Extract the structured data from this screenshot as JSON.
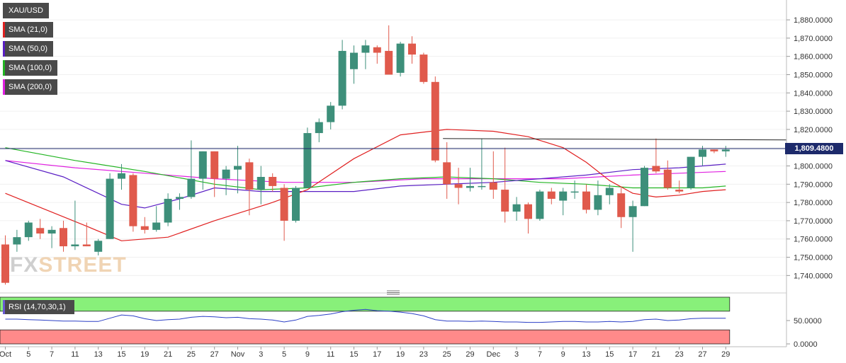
{
  "chart_data": {
    "type": "candlestick",
    "symbol": "XAU/USD",
    "last_price": "1,809.4800",
    "price_axis": {
      "ylim": [
        1732,
        1887
      ],
      "ticks": [
        "1,740.0000",
        "1,750.0000",
        "1,760.0000",
        "1,770.0000",
        "1,780.0000",
        "1,790.0000",
        "1,800.0000",
        "1,810.0000",
        "1,820.0000",
        "1,830.0000",
        "1,840.0000",
        "1,850.0000",
        "1,860.0000",
        "1,870.0000",
        "1,880.0000"
      ],
      "tick_values": [
        1740,
        1750,
        1760,
        1770,
        1780,
        1790,
        1800,
        1810,
        1820,
        1830,
        1840,
        1850,
        1860,
        1870,
        1880
      ]
    },
    "x_axis": {
      "labels": [
        "Oct",
        "5",
        "7",
        "11",
        "13",
        "15",
        "19",
        "21",
        "25",
        "27",
        "Nov",
        "3",
        "5",
        "9",
        "11",
        "15",
        "17",
        "19",
        "23",
        "25",
        "29",
        "Dec",
        "3",
        "7",
        "9",
        "13",
        "15",
        "17",
        "21",
        "23",
        "27",
        "29"
      ],
      "label_slots": [
        0,
        2,
        4,
        6,
        8,
        10,
        12,
        14,
        16,
        18,
        20,
        22,
        24,
        26,
        28,
        30,
        32,
        34,
        36,
        38,
        40,
        42,
        44,
        46,
        48,
        50,
        52,
        54,
        56,
        58,
        60,
        62
      ]
    },
    "legend": [
      {
        "label": "XAU/USD",
        "color": "#4a4a4a"
      },
      {
        "label": "SMA (21,0)",
        "color": "#e02020"
      },
      {
        "label": "SMA (50,0)",
        "color": "#5a1fc4"
      },
      {
        "label": "SMA (100,0)",
        "color": "#22b422"
      },
      {
        "label": "SMA (200,0)",
        "color": "#e020e0"
      }
    ],
    "candles": [
      [
        1757,
        1762,
        1735,
        1736
      ],
      [
        1757,
        1765,
        1753,
        1761
      ],
      [
        1761,
        1770,
        1759,
        1769
      ],
      [
        1766,
        1771,
        1760,
        1763
      ],
      [
        1763,
        1767,
        1755,
        1765
      ],
      [
        1766,
        1770,
        1753,
        1756
      ],
      [
        1756,
        1781,
        1754,
        1757
      ],
      [
        1757,
        1769,
        1756,
        1756
      ],
      [
        1753,
        1760,
        1751,
        1759
      ],
      [
        1760,
        1796,
        1760,
        1793
      ],
      [
        1793,
        1801,
        1787,
        1796
      ],
      [
        1795,
        1796,
        1764,
        1767
      ],
      [
        1767,
        1772,
        1763,
        1765
      ],
      [
        1765,
        1778,
        1764,
        1769
      ],
      [
        1769,
        1785,
        1767,
        1782
      ],
      [
        1782,
        1785,
        1776,
        1783
      ],
      [
        1783,
        1814,
        1782,
        1793
      ],
      [
        1793,
        1808,
        1787,
        1808
      ],
      [
        1808,
        1808,
        1783,
        1793
      ],
      [
        1793,
        1800,
        1784,
        1798
      ],
      [
        1798,
        1811,
        1785,
        1800
      ],
      [
        1802,
        1804,
        1773,
        1787
      ],
      [
        1787,
        1800,
        1779,
        1794
      ],
      [
        1794,
        1796,
        1786,
        1789
      ],
      [
        1788,
        1790,
        1759,
        1770
      ],
      [
        1770,
        1789,
        1769,
        1788
      ],
      [
        1788,
        1821,
        1788,
        1818
      ],
      [
        1818,
        1826,
        1813,
        1824
      ],
      [
        1824,
        1835,
        1820,
        1833
      ],
      [
        1833,
        1869,
        1831,
        1863
      ],
      [
        1853,
        1866,
        1845,
        1862
      ],
      [
        1862,
        1869,
        1853,
        1866
      ],
      [
        1865,
        1866,
        1856,
        1862
      ],
      [
        1863,
        1877,
        1851,
        1850
      ],
      [
        1851,
        1868,
        1849,
        1867
      ],
      [
        1867,
        1871,
        1856,
        1861
      ],
      [
        1861,
        1862,
        1845,
        1846
      ],
      [
        1846,
        1849,
        1802,
        1803
      ],
      [
        1802,
        1813,
        1782,
        1790
      ],
      [
        1790,
        1799,
        1779,
        1788
      ],
      [
        1788,
        1799,
        1786,
        1789
      ],
      [
        1789,
        1815,
        1787,
        1789
      ],
      [
        1791,
        1808,
        1782,
        1787
      ],
      [
        1787,
        1810,
        1769,
        1775
      ],
      [
        1775,
        1783,
        1770,
        1779
      ],
      [
        1779,
        1780,
        1763,
        1771
      ],
      [
        1771,
        1787,
        1770,
        1786
      ],
      [
        1786,
        1788,
        1779,
        1782
      ],
      [
        1781,
        1788,
        1773,
        1786
      ],
      [
        1786,
        1792,
        1782,
        1786
      ],
      [
        1786,
        1790,
        1774,
        1776
      ],
      [
        1776,
        1792,
        1773,
        1784
      ],
      [
        1784,
        1790,
        1779,
        1788
      ],
      [
        1785,
        1788,
        1766,
        1772
      ],
      [
        1772,
        1781,
        1753,
        1778
      ],
      [
        1778,
        1800,
        1778,
        1799
      ],
      [
        1800,
        1815,
        1796,
        1797
      ],
      [
        1798,
        1803,
        1787,
        1788
      ],
      [
        1787,
        1792,
        1785,
        1786
      ],
      [
        1788,
        1805,
        1787,
        1805
      ],
      [
        1805,
        1811,
        1800,
        1809
      ],
      [
        1809,
        1809,
        1807,
        1808
      ],
      [
        1808,
        1811,
        1805,
        1809
      ]
    ],
    "sma_21": [
      [
        0,
        1785
      ],
      [
        7,
        1767
      ],
      [
        10,
        1759
      ],
      [
        14,
        1761
      ],
      [
        18,
        1770
      ],
      [
        23,
        1780
      ],
      [
        26,
        1787
      ],
      [
        30,
        1804
      ],
      [
        34,
        1817
      ],
      [
        38,
        1820
      ],
      [
        42,
        1819
      ],
      [
        45,
        1816
      ],
      [
        48,
        1810
      ],
      [
        50,
        1802
      ],
      [
        52,
        1792
      ],
      [
        54,
        1785
      ],
      [
        56,
        1783
      ],
      [
        58,
        1784
      ],
      [
        60,
        1786
      ],
      [
        62,
        1787
      ]
    ],
    "sma_50": [
      [
        0,
        1803
      ],
      [
        5,
        1794
      ],
      [
        10,
        1779
      ],
      [
        12,
        1777
      ],
      [
        15,
        1782
      ],
      [
        18,
        1788
      ],
      [
        22,
        1786
      ],
      [
        26,
        1786
      ],
      [
        30,
        1786
      ],
      [
        34,
        1789
      ],
      [
        38,
        1790
      ],
      [
        42,
        1791
      ],
      [
        46,
        1793
      ],
      [
        50,
        1795
      ],
      [
        54,
        1798
      ],
      [
        58,
        1799
      ],
      [
        62,
        1801
      ]
    ],
    "sma_100": [
      [
        0,
        1810
      ],
      [
        6,
        1803
      ],
      [
        12,
        1797
      ],
      [
        18,
        1790
      ],
      [
        22,
        1787
      ],
      [
        26,
        1788
      ],
      [
        30,
        1791
      ],
      [
        34,
        1793
      ],
      [
        38,
        1794
      ],
      [
        42,
        1793
      ],
      [
        46,
        1791
      ],
      [
        50,
        1790
      ],
      [
        54,
        1788
      ],
      [
        58,
        1788
      ],
      [
        60,
        1788
      ],
      [
        62,
        1789
      ]
    ],
    "sma_200": [
      [
        0,
        1803
      ],
      [
        6,
        1799
      ],
      [
        12,
        1796
      ],
      [
        18,
        1793
      ],
      [
        24,
        1791
      ],
      [
        30,
        1791
      ],
      [
        36,
        1793
      ],
      [
        42,
        1793
      ],
      [
        48,
        1793
      ],
      [
        54,
        1795
      ],
      [
        58,
        1796
      ],
      [
        62,
        1797
      ]
    ],
    "resistance_line": {
      "from_slot": 38,
      "to_slot": 64,
      "value": 1815
    },
    "current_price_line": 1809.48,
    "rsi": {
      "label": "RSI (14,70,30,1)",
      "ticks": [
        "50.0000",
        "0.0000"
      ],
      "tick_values": [
        50,
        0
      ],
      "overbought": 70,
      "oversold": 30,
      "values": [
        53,
        53,
        52,
        51,
        50,
        49,
        49,
        48,
        48,
        55,
        62,
        60,
        54,
        50,
        52,
        53,
        57,
        59,
        58,
        56,
        57,
        54,
        53,
        51,
        47,
        51,
        59,
        61,
        64,
        69,
        72,
        74,
        71,
        70,
        68,
        65,
        60,
        52,
        49,
        49,
        48,
        49,
        48,
        47,
        47,
        46,
        46,
        47,
        48,
        48,
        47,
        47,
        48,
        47,
        48,
        52,
        53,
        50,
        51,
        54,
        55,
        55,
        55
      ]
    }
  }
}
